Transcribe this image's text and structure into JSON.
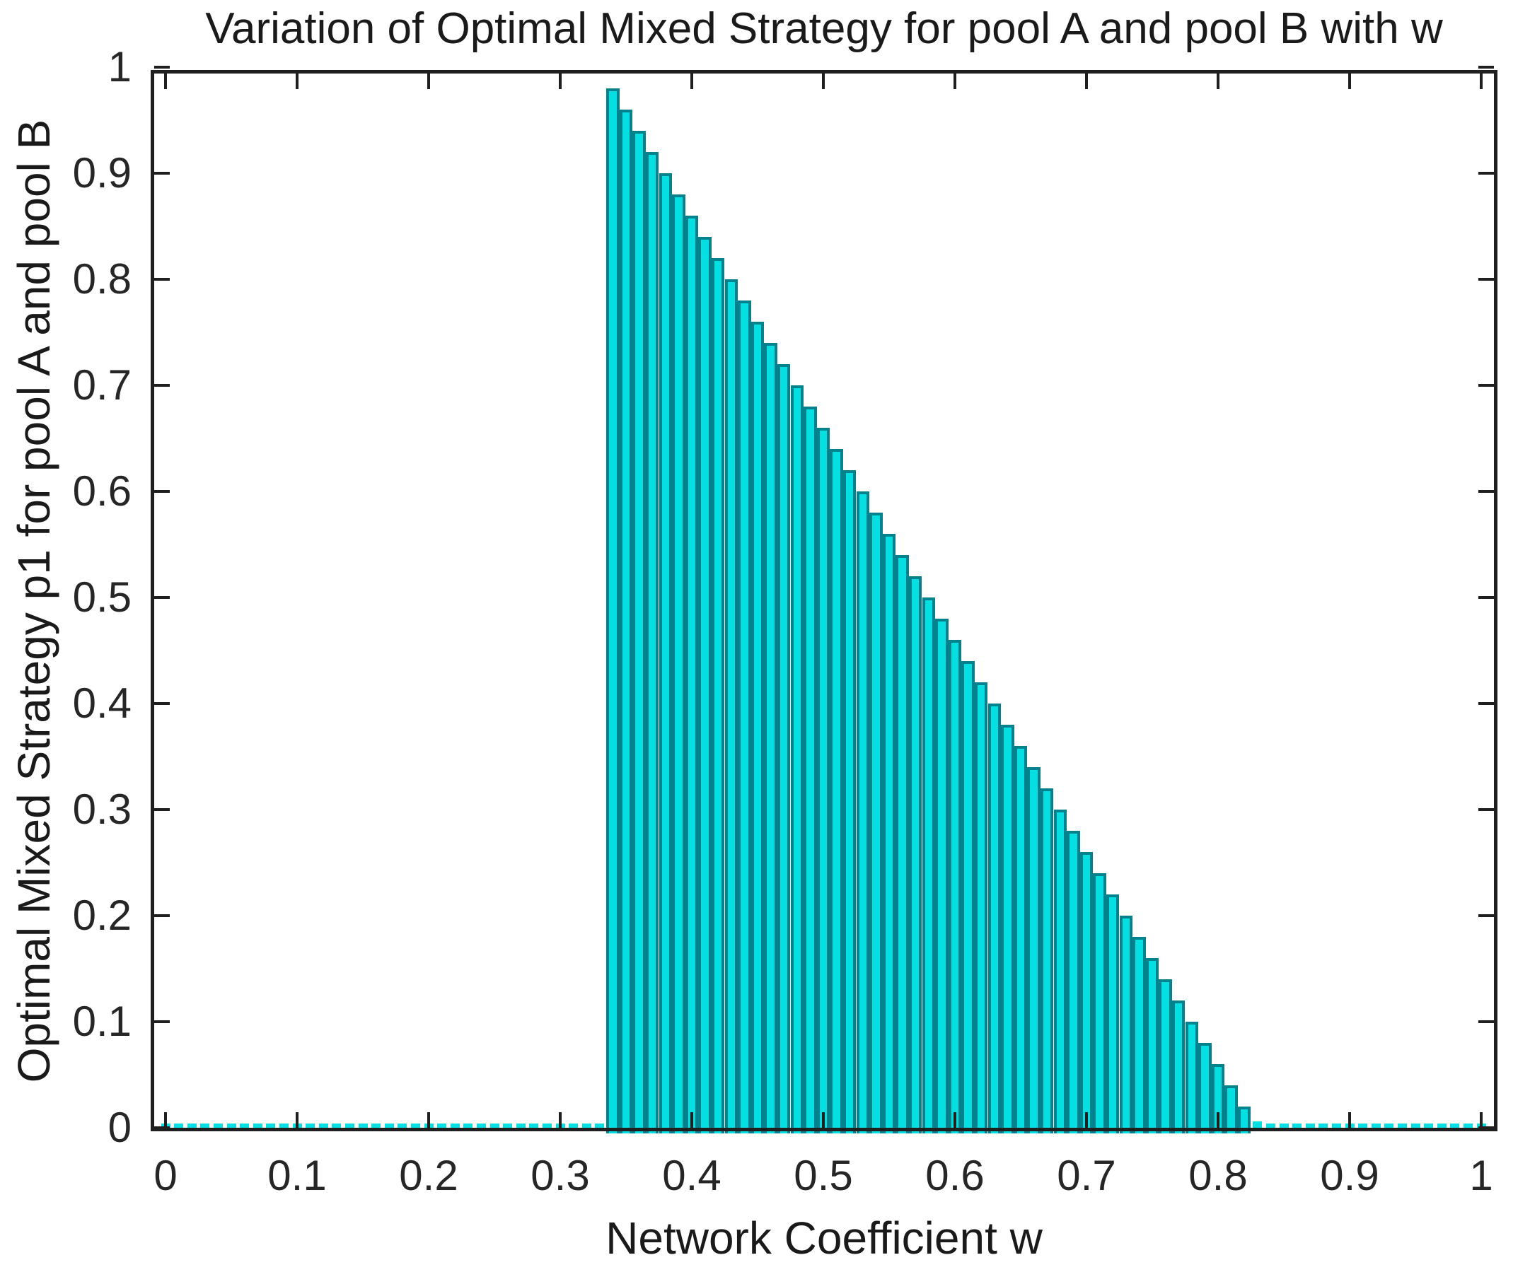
{
  "figure": {
    "background": "#ffffff"
  },
  "chart_data": {
    "type": "bar",
    "title": "Variation of Optimal Mixed Strategy for pool A and pool B with w",
    "xlabel": "Network Coefficient w",
    "ylabel": "Optimal Mixed Strategy p1 for pool A and pool B",
    "x": [
      0,
      0.01,
      0.02,
      0.03,
      0.04,
      0.05,
      0.06,
      0.07,
      0.08,
      0.09,
      0.1,
      0.11,
      0.12,
      0.13,
      0.14,
      0.15,
      0.16,
      0.17,
      0.18,
      0.19,
      0.2,
      0.21,
      0.22,
      0.23,
      0.24,
      0.25,
      0.26,
      0.27,
      0.28,
      0.29,
      0.3,
      0.31,
      0.32,
      0.33,
      0.34,
      0.35,
      0.36,
      0.37,
      0.38,
      0.39,
      0.4,
      0.41,
      0.42,
      0.43,
      0.44,
      0.45,
      0.46,
      0.47,
      0.48,
      0.49,
      0.5,
      0.51,
      0.52,
      0.53,
      0.54,
      0.55,
      0.56,
      0.57,
      0.58,
      0.59,
      0.6,
      0.61,
      0.62,
      0.63,
      0.64,
      0.65,
      0.66,
      0.67,
      0.68,
      0.69,
      0.7,
      0.71,
      0.72,
      0.73,
      0.74,
      0.75,
      0.76,
      0.77,
      0.78,
      0.79,
      0.8,
      0.81,
      0.82,
      0.83,
      0.84,
      0.85,
      0.86,
      0.87,
      0.88,
      0.89,
      0.9,
      0.91,
      0.92,
      0.93,
      0.94,
      0.95,
      0.96,
      0.97,
      0.98,
      0.99,
      1
    ],
    "values": [
      0.003,
      0.003,
      0.003,
      0.003,
      0.003,
      0.003,
      0.003,
      0.003,
      0.003,
      0.003,
      0.003,
      0.003,
      0.003,
      0.003,
      0.003,
      0.003,
      0.003,
      0.003,
      0.003,
      0.003,
      0.003,
      0.003,
      0.003,
      0.003,
      0.003,
      0.003,
      0.003,
      0.003,
      0.003,
      0.003,
      0.003,
      0.003,
      0.003,
      0.003,
      0.98,
      0.96,
      0.94,
      0.92,
      0.9,
      0.88,
      0.86,
      0.84,
      0.82,
      0.8,
      0.78,
      0.76,
      0.74,
      0.72,
      0.7,
      0.68,
      0.66,
      0.64,
      0.62,
      0.6,
      0.58,
      0.56,
      0.54,
      0.52,
      0.5,
      0.48,
      0.46,
      0.44,
      0.42,
      0.4,
      0.38,
      0.36,
      0.34,
      0.32,
      0.3,
      0.28,
      0.26,
      0.24,
      0.22,
      0.2,
      0.18,
      0.16,
      0.14,
      0.12,
      0.1,
      0.08,
      0.06,
      0.04,
      0.02,
      0.005,
      0.003,
      0.003,
      0.003,
      0.003,
      0.003,
      0.003,
      0.003,
      0.003,
      0.003,
      0.003,
      0.003,
      0.003,
      0.003,
      0.003,
      0.003,
      0.003,
      0.003
    ],
    "xlim": [
      -0.011,
      1.012
    ],
    "ylim": [
      0,
      1
    ],
    "xticks": {
      "values": [
        0,
        0.1,
        0.2,
        0.3,
        0.4,
        0.5,
        0.6,
        0.7,
        0.8,
        0.9,
        1
      ],
      "labels": [
        "0",
        "0.1",
        "0.2",
        "0.3",
        "0.4",
        "0.5",
        "0.6",
        "0.7",
        "0.8",
        "0.9",
        "1"
      ]
    },
    "yticks": {
      "values": [
        0,
        0.1,
        0.2,
        0.3,
        0.4,
        0.5,
        0.6,
        0.7,
        0.8,
        0.9,
        1
      ],
      "labels": [
        "0",
        "0.1",
        "0.2",
        "0.3",
        "0.4",
        "0.5",
        "0.6",
        "0.7",
        "0.8",
        "0.9",
        "1"
      ]
    },
    "grid": false,
    "legend": null,
    "colors": {
      "bar_face": "#06dfe2",
      "bar_edge": "#03818c",
      "axis": "#1f1f1f",
      "text": "#262626",
      "background": "#ffffff"
    }
  }
}
